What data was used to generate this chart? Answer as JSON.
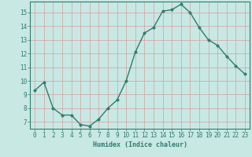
{
  "x": [
    0,
    1,
    2,
    3,
    4,
    5,
    6,
    7,
    8,
    9,
    10,
    11,
    12,
    13,
    14,
    15,
    16,
    17,
    18,
    19,
    20,
    21,
    22,
    23
  ],
  "y": [
    9.3,
    9.9,
    8.0,
    7.5,
    7.5,
    6.8,
    6.7,
    7.2,
    8.0,
    8.6,
    10.0,
    12.1,
    13.5,
    13.9,
    15.1,
    15.2,
    15.6,
    15.0,
    13.9,
    13.0,
    12.6,
    11.8,
    11.1,
    10.5
  ],
  "line_color": "#2e7d6e",
  "marker_color": "#2e7d6e",
  "bg_color": "#c8e8e4",
  "grid_color": "#c0d8d4",
  "xlabel": "Humidex (Indice chaleur)",
  "xlim": [
    -0.5,
    23.5
  ],
  "ylim": [
    6.5,
    15.8
  ],
  "yticks": [
    7,
    8,
    9,
    10,
    11,
    12,
    13,
    14,
    15
  ],
  "xticks": [
    0,
    1,
    2,
    3,
    4,
    5,
    6,
    7,
    8,
    9,
    10,
    11,
    12,
    13,
    14,
    15,
    16,
    17,
    18,
    19,
    20,
    21,
    22,
    23
  ],
  "xlabel_fontsize": 6.0,
  "tick_fontsize": 5.5,
  "line_width": 1.0,
  "marker_size": 2.5
}
